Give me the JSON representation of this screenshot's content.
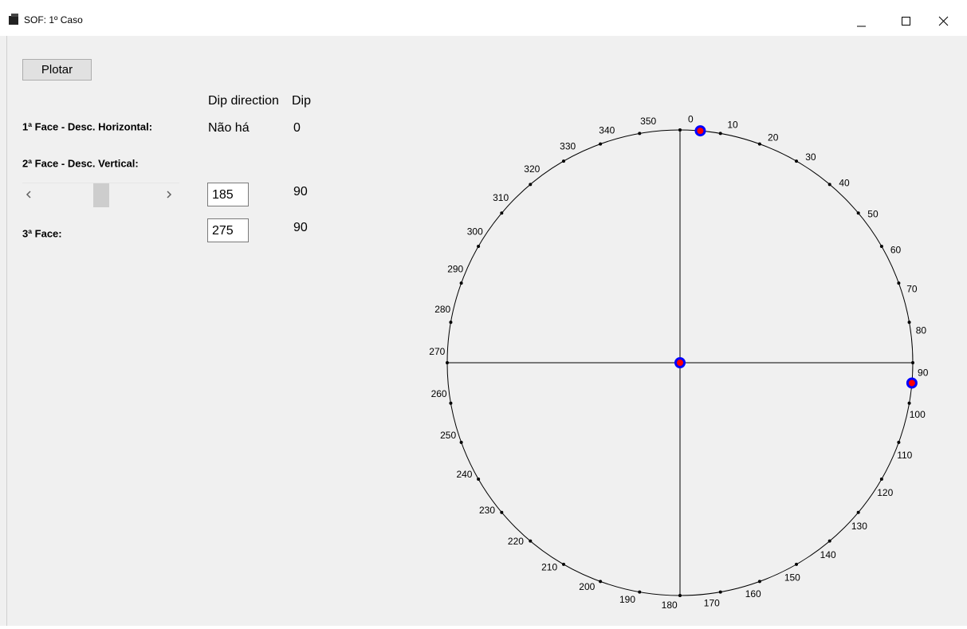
{
  "window": {
    "title": "SOF: 1º Caso"
  },
  "form": {
    "button": "Plotar",
    "headers": {
      "dip_direction": "Dip direction",
      "dip": "Dip"
    },
    "face1": {
      "label": "1ª Face - Desc. Horizontal:",
      "dip_direction": "Não há",
      "dip": 0
    },
    "face2": {
      "label": "2ª Face - Desc. Vertical:",
      "dip_direction": 185,
      "dip": 90
    },
    "face3": {
      "label": "3ª Face:",
      "dip_direction": 275,
      "dip": 90
    }
  },
  "plot": {
    "azimuth_labels": [
      0,
      10,
      20,
      30,
      40,
      50,
      60,
      70,
      80,
      90,
      100,
      110,
      120,
      130,
      140,
      150,
      160,
      170,
      180,
      190,
      200,
      210,
      220,
      230,
      240,
      250,
      260,
      270,
      280,
      290,
      300,
      310,
      320,
      330,
      340,
      350
    ],
    "poles": [
      {
        "azimuth": 0,
        "radius": 0
      },
      {
        "azimuth": 5,
        "radius": 1
      },
      {
        "azimuth": 95,
        "radius": 1
      }
    ]
  }
}
